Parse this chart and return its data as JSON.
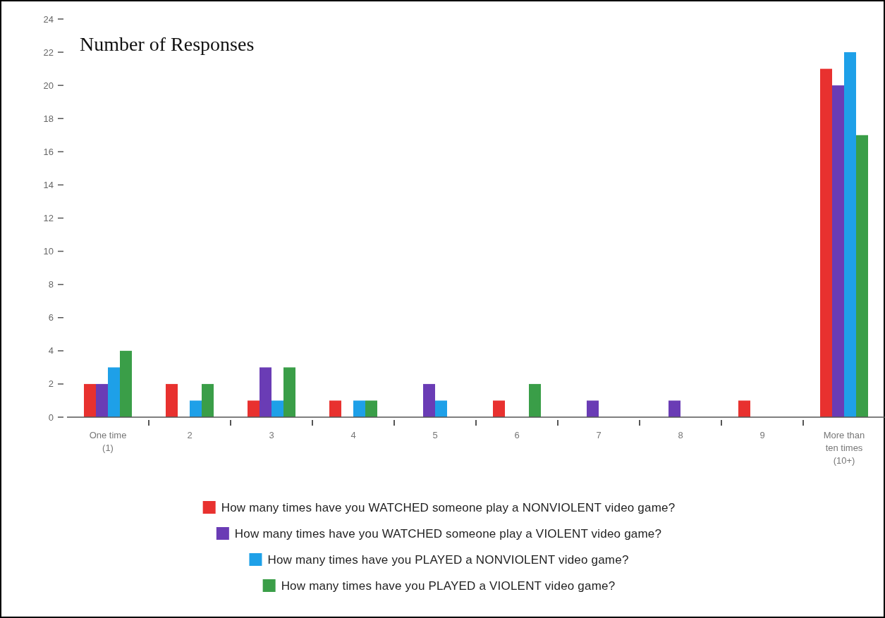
{
  "chart_data": {
    "type": "bar",
    "title": "Number of Responses",
    "categories": [
      "One time (1)",
      "2",
      "3",
      "4",
      "5",
      "6",
      "7",
      "8",
      "9",
      "More than ten times (10+)"
    ],
    "series": [
      {
        "name": "How many times have you WATCHED someone play a NONVIOLENT video game?",
        "color": "#e8312f",
        "values": [
          2,
          2,
          1,
          1,
          0,
          1,
          0,
          0,
          1,
          21
        ]
      },
      {
        "name": "How many times have you WATCHED someone play a VIOLENT video game?",
        "color": "#6a3cb5",
        "values": [
          2,
          0,
          3,
          0,
          2,
          0,
          1,
          1,
          0,
          20
        ]
      },
      {
        "name": "How many times have you PLAYED a NONVIOLENT video game?",
        "color": "#1ea0e8",
        "values": [
          3,
          1,
          1,
          1,
          1,
          0,
          0,
          0,
          0,
          22
        ]
      },
      {
        "name": "How many times have you PLAYED a VIOLENT video game?",
        "color": "#3a9e48",
        "values": [
          4,
          2,
          3,
          1,
          0,
          2,
          0,
          0,
          0,
          17
        ]
      }
    ],
    "ylim": [
      0,
      24
    ],
    "yticks": [
      0,
      2,
      4,
      6,
      8,
      10,
      12,
      14,
      16,
      18,
      20,
      22,
      24
    ],
    "grid": false,
    "legend": "bottom"
  }
}
